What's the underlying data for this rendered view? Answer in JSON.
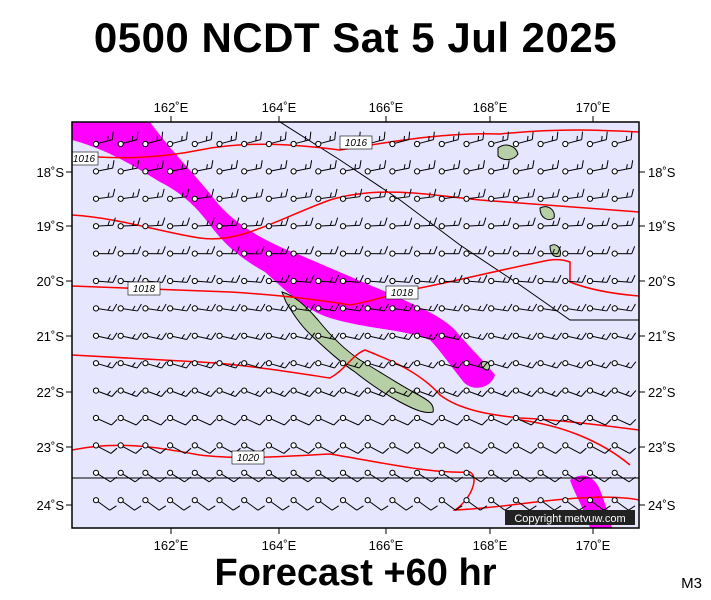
{
  "title": "0500 NCDT Sat 5 Jul 2025",
  "footer": "Forecast +60 hr",
  "model_label": "M3",
  "copyright": "Copyright metvuw.com",
  "colors": {
    "ocean": "#e6e6ff",
    "isobar": "#ff0000",
    "rain": "#ff00ff",
    "land": "#b7cfa6"
  },
  "axes": {
    "lon_labels": [
      "162˚E",
      "164˚E",
      "166˚E",
      "168˚E",
      "170˚E"
    ],
    "lat_labels": [
      "18˚S",
      "19˚S",
      "20˚S",
      "21˚S",
      "22˚S",
      "23˚S",
      "24˚S"
    ]
  },
  "isobar_labels": [
    "1016",
    "1016",
    "1018",
    "1018",
    "1020"
  ]
}
